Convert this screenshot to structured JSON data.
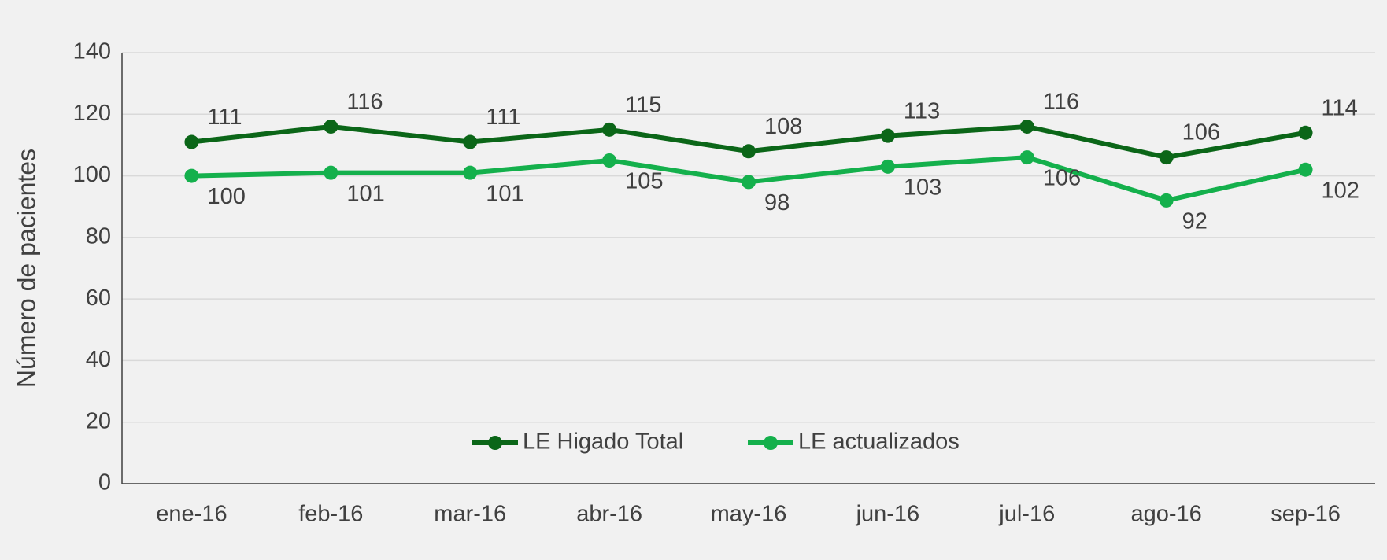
{
  "chart_data": {
    "type": "line",
    "y_label": "Número de pacientes",
    "categories": [
      "ene-16",
      "feb-16",
      "mar-16",
      "abr-16",
      "may-16",
      "jun-16",
      "jul-16",
      "ago-16",
      "sep-16"
    ],
    "series": [
      {
        "name": "LE Higado Total",
        "color": "#0b6618",
        "values": [
          111,
          116,
          111,
          115,
          108,
          113,
          116,
          106,
          114
        ]
      },
      {
        "name": "LE actualizados",
        "color": "#14b04c",
        "values": [
          100,
          101,
          101,
          105,
          98,
          103,
          106,
          92,
          102
        ]
      }
    ],
    "ylim": [
      0,
      140
    ],
    "yticks": [
      0,
      20,
      40,
      60,
      80,
      100,
      120,
      140
    ],
    "grid": true,
    "legend": "bottom"
  }
}
